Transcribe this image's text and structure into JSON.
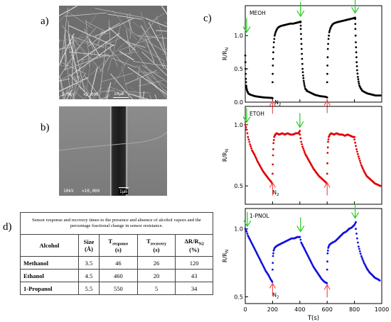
{
  "labels": {
    "a": "a)",
    "b": "b)",
    "c": "c)",
    "d": "d)"
  },
  "sem_a": {
    "voltage": "2.0kV",
    "mag": "×2,000",
    "scale": "10µm"
  },
  "sem_b": {
    "voltage": "10kV",
    "mag": "×10,000",
    "scale": "1µm"
  },
  "table": {
    "caption": "Sensor response and recovery times to the presence and absence of alcohol vapors and the percentage fractional change in sensor resistance.",
    "headers": {
      "alcohol": "Alcohol",
      "size": "Size",
      "size_unit": "(Å)",
      "response": "T",
      "response_sub": "response",
      "response_unit": "(s)",
      "recovery": "T",
      "recovery_sub": "recovery",
      "recovery_unit": "(s)",
      "delta": "ΔR/R",
      "delta_sub": "N2",
      "delta_unit": "(%)"
    },
    "rows": [
      {
        "alcohol": "Methanol",
        "size": "3.5",
        "response": "46",
        "recovery": "26",
        "delta": "120"
      },
      {
        "alcohol": "Ethanol",
        "size": "4.5",
        "response": "460",
        "recovery": "20",
        "delta": "43"
      },
      {
        "alcohol": "1-Propanol",
        "size": "5.5",
        "response": "550",
        "recovery": "5",
        "delta": "34"
      }
    ]
  },
  "chart_data": [
    {
      "type": "scatter",
      "color": "#000000",
      "label": "MEOH",
      "ylabel": "R/R",
      "ylabel_sub": "N",
      "ylim": [
        0,
        1.45
      ],
      "xlim": [
        0,
        1000
      ],
      "yticks": [
        "0.0",
        "0.5",
        "1.0"
      ],
      "annotation": "N",
      "annotation_sub": "2",
      "segments": [
        {
          "x": [
            0,
            2,
            4,
            7,
            10,
            14,
            18,
            23,
            30,
            40,
            55,
            70,
            85,
            100,
            120,
            140,
            160,
            180,
            195,
            200
          ],
          "y": [
            0.7,
            0.5,
            0.35,
            0.25,
            0.2,
            0.17,
            0.15,
            0.13,
            0.12,
            0.11,
            0.1,
            0.09,
            0.085,
            0.08,
            0.075,
            0.07,
            0.068,
            0.065,
            0.063,
            0.06
          ]
        },
        {
          "x": [
            200,
            202,
            205,
            210,
            215,
            222,
            230,
            240,
            255,
            270,
            290,
            310,
            330,
            350,
            370,
            390,
            405
          ],
          "y": [
            0.3,
            0.55,
            0.75,
            0.9,
            1.0,
            1.05,
            1.09,
            1.12,
            1.14,
            1.15,
            1.16,
            1.17,
            1.18,
            1.18,
            1.19,
            1.2,
            1.21
          ]
        },
        {
          "x": [
            405,
            407,
            410,
            413,
            416,
            420,
            424,
            428,
            433,
            440,
            450
          ],
          "y": [
            1.2,
            1.1,
            0.95,
            0.8,
            0.65,
            0.5,
            0.4,
            0.32,
            0.26,
            0.2,
            0.18
          ]
        },
        {
          "x": [
            450,
            470,
            490,
            510,
            530,
            550,
            570,
            590,
            600
          ],
          "y": [
            0.17,
            0.15,
            0.13,
            0.11,
            0.1,
            0.09,
            0.085,
            0.08,
            0.07
          ]
        },
        {
          "x": [
            600,
            602,
            605,
            610,
            615,
            622,
            630,
            640,
            655,
            670,
            690,
            710,
            730,
            750,
            770,
            790,
            805
          ],
          "y": [
            0.3,
            0.55,
            0.8,
            0.95,
            1.05,
            1.1,
            1.14,
            1.17,
            1.19,
            1.2,
            1.21,
            1.22,
            1.23,
            1.24,
            1.25,
            1.26,
            1.27
          ]
        },
        {
          "x": [
            805,
            807,
            810,
            813,
            816,
            820,
            825,
            830,
            836,
            845,
            858,
            875,
            895,
            915,
            935,
            955,
            975,
            990
          ],
          "y": [
            1.25,
            1.1,
            0.9,
            0.75,
            0.6,
            0.48,
            0.38,
            0.31,
            0.25,
            0.21,
            0.17,
            0.15,
            0.13,
            0.12,
            0.11,
            0.1,
            0.1,
            0.1
          ]
        }
      ],
      "arrows_down": [
        {
          "x": 10,
          "y": 1.05
        },
        {
          "x": 405,
          "y": 1.29
        },
        {
          "x": 805,
          "y": 1.34
        }
      ],
      "arrows_up": [
        {
          "x": 200,
          "y": 0.06
        },
        {
          "x": 600,
          "y": 0.07
        }
      ],
      "n2_label_x": 215,
      "n2_label_y": -0.03
    },
    {
      "type": "scatter",
      "color": "#e00000",
      "label": "ETOH",
      "ylabel": "R/R",
      "ylabel_sub": "N",
      "ylim": [
        0.35,
        1.15
      ],
      "xlim": [
        0,
        1000
      ],
      "yticks": [
        "0.5",
        "1.0"
      ],
      "annotation": "N",
      "annotation_sub": "2",
      "segments": [
        {
          "x": [
            0,
            10,
            20,
            35,
            50,
            70,
            90,
            110,
            130,
            150,
            170,
            185,
            198
          ],
          "y": [
            1.0,
            0.96,
            0.9,
            0.84,
            0.79,
            0.75,
            0.7,
            0.66,
            0.62,
            0.59,
            0.56,
            0.54,
            0.52
          ]
        },
        {
          "x": [
            200,
            203,
            207,
            212,
            220,
            230,
            250,
            270,
            290,
            310,
            330,
            350,
            370,
            390,
            400
          ],
          "y": [
            0.6,
            0.75,
            0.85,
            0.9,
            0.92,
            0.93,
            0.92,
            0.93,
            0.92,
            0.93,
            0.92,
            0.92,
            0.93,
            0.93,
            0.95
          ]
        },
        {
          "x": [
            400,
            410,
            420,
            440,
            460,
            480,
            500,
            520,
            540,
            560,
            580,
            598
          ],
          "y": [
            0.92,
            0.86,
            0.82,
            0.76,
            0.72,
            0.68,
            0.64,
            0.61,
            0.58,
            0.56,
            0.54,
            0.52
          ]
        },
        {
          "x": [
            600,
            603,
            607,
            612,
            620,
            630,
            650,
            670,
            690,
            710,
            730,
            750,
            770,
            790,
            800
          ],
          "y": [
            0.6,
            0.77,
            0.86,
            0.9,
            0.92,
            0.93,
            0.92,
            0.93,
            0.92,
            0.92,
            0.91,
            0.92,
            0.91,
            0.9,
            0.9
          ]
        },
        {
          "x": [
            800,
            815,
            830,
            850,
            870,
            890,
            910,
            930,
            950,
            970,
            990
          ],
          "y": [
            0.88,
            0.8,
            0.74,
            0.67,
            0.62,
            0.58,
            0.56,
            0.54,
            0.52,
            0.51,
            0.5
          ]
        }
      ],
      "arrows_down": [
        {
          "x": 10,
          "y": 1.02
        },
        {
          "x": 400,
          "y": 0.98
        }
      ],
      "arrows_up": [
        {
          "x": 200,
          "y": 0.55
        },
        {
          "x": 600,
          "y": 0.55
        }
      ],
      "n2_label_x": 200,
      "n2_label_y": 0.43
    },
    {
      "type": "scatter",
      "color": "#1010e0",
      "label": "1-PNOL",
      "ylabel": "R/R",
      "ylabel_sub": "N",
      "ylim": [
        0.45,
        1.15
      ],
      "xlim": [
        0,
        1000
      ],
      "yticks": [
        "0.5",
        "1.0"
      ],
      "annotation": "N",
      "annotation_sub": "2",
      "segments": [
        {
          "x": [
            0,
            10,
            20,
            35,
            50,
            70,
            90,
            110,
            130,
            150,
            170,
            185,
            198
          ],
          "y": [
            1.0,
            0.98,
            0.95,
            0.92,
            0.89,
            0.85,
            0.81,
            0.77,
            0.73,
            0.69,
            0.66,
            0.63,
            0.61
          ]
        },
        {
          "x": [
            200,
            203,
            208,
            215,
            225,
            240,
            260,
            280,
            300,
            320,
            340,
            360,
            380,
            400
          ],
          "y": [
            0.7,
            0.8,
            0.84,
            0.86,
            0.87,
            0.88,
            0.89,
            0.9,
            0.91,
            0.92,
            0.93,
            0.93,
            0.94,
            0.94
          ]
        },
        {
          "x": [
            400,
            410,
            420,
            440,
            460,
            480,
            500,
            520,
            540,
            560,
            580,
            598
          ],
          "y": [
            0.94,
            0.9,
            0.88,
            0.84,
            0.8,
            0.76,
            0.72,
            0.69,
            0.66,
            0.63,
            0.61,
            0.6
          ]
        },
        {
          "x": [
            600,
            603,
            608,
            615,
            625,
            640,
            660,
            680,
            700,
            720,
            740,
            760,
            780,
            800,
            810
          ],
          "y": [
            0.7,
            0.82,
            0.86,
            0.88,
            0.89,
            0.9,
            0.91,
            0.93,
            0.95,
            0.97,
            0.98,
            1.0,
            1.01,
            1.03,
            1.05
          ]
        },
        {
          "x": [
            810,
            820,
            830,
            850,
            870,
            890,
            910,
            930,
            950,
            970,
            985
          ],
          "y": [
            1.0,
            0.93,
            0.87,
            0.8,
            0.75,
            0.71,
            0.68,
            0.66,
            0.64,
            0.63,
            0.62
          ]
        }
      ],
      "arrows_down": [
        {
          "x": 15,
          "y": 1.02
        },
        {
          "x": 405,
          "y": 0.98
        },
        {
          "x": 805,
          "y": 1.08
        }
      ],
      "arrows_up": [
        {
          "x": 200,
          "y": 0.62
        },
        {
          "x": 600,
          "y": 0.61
        }
      ],
      "n2_label_x": 200,
      "n2_label_y": 0.5
    }
  ],
  "x_axis": {
    "label": "T(s)",
    "ticks": [
      "0",
      "200",
      "400",
      "600",
      "800",
      "1000"
    ]
  }
}
